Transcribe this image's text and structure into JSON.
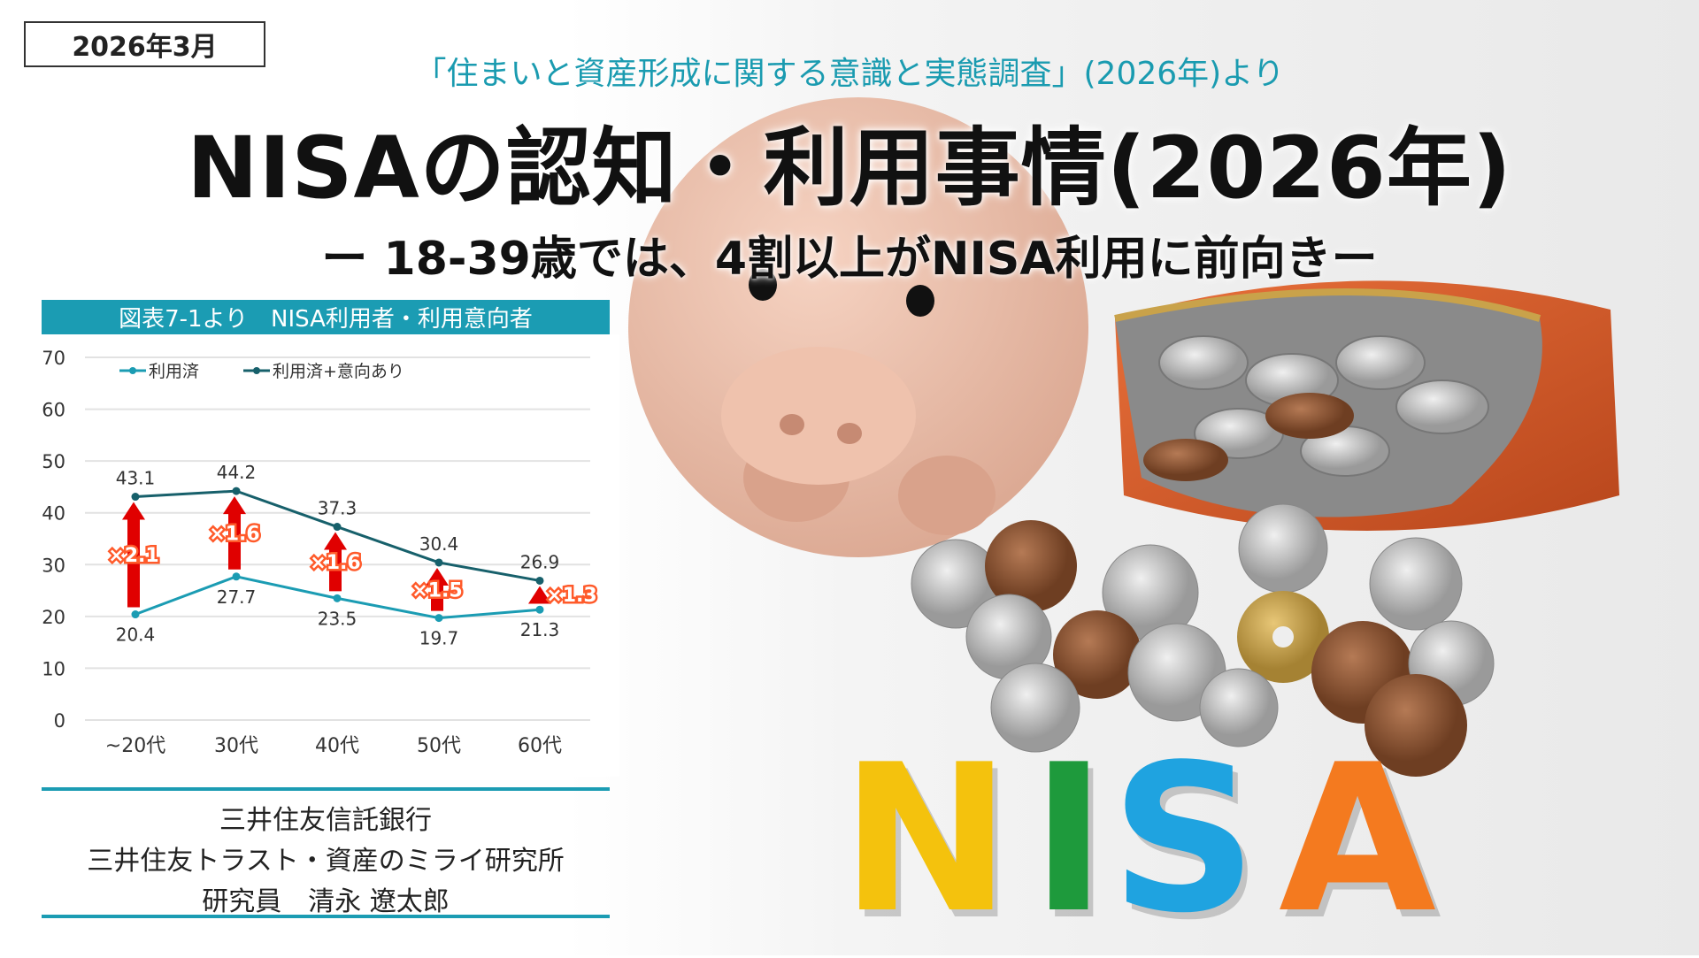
{
  "header": {
    "date": "2026年3月",
    "source": "「住まいと資産形成に関する意識と実態調査」(2026年)より",
    "title": "NISAの認知・利用事情(2026年)",
    "subtitle": "ー 18-39歳では、4割以上がNISA利用に前向きー"
  },
  "chart_data": {
    "type": "line",
    "title": "図表7-1より　NISA利用者・利用意向者",
    "categories": [
      "~20代",
      "30代",
      "40代",
      "50代",
      "60代"
    ],
    "series": [
      {
        "name": "利用済",
        "values": [
          20.4,
          27.7,
          23.5,
          19.7,
          21.3
        ],
        "color": "#1b9cb3"
      },
      {
        "name": "利用済+意向あり",
        "values": [
          43.1,
          44.2,
          37.3,
          30.4,
          26.9
        ],
        "color": "#17606b"
      }
    ],
    "multipliers": [
      "×2.1",
      "×1.6",
      "×1.6",
      "×1.5",
      "×1.3"
    ],
    "multiplier_color": "#e00000",
    "ylim": [
      0,
      70
    ],
    "yticks": [
      0,
      10,
      20,
      30,
      40,
      50,
      60,
      70
    ],
    "grid": true,
    "legend": "top-left"
  },
  "credits": [
    "三井住友信託銀行",
    "三井住友トラスト・資産のミライ研究所",
    "研究員　清永 遼太郎"
  ],
  "photo": {
    "letters": [
      {
        "char": "N",
        "color": "#f4c20d"
      },
      {
        "char": "I",
        "color": "#1e9a3c"
      },
      {
        "char": "S",
        "color": "#1fa3e0"
      },
      {
        "char": "A",
        "color": "#f47a1f"
      }
    ]
  },
  "colors": {
    "accent": "#1b9cb3"
  }
}
